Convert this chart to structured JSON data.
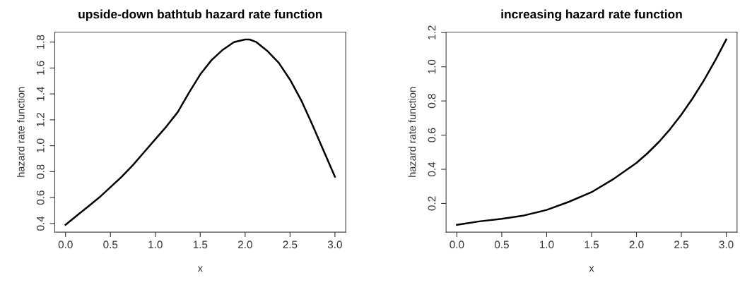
{
  "chart_data": [
    {
      "type": "line",
      "title": "upside-down bathtub hazard rate function",
      "xlabel": "x",
      "ylabel": "hazard rate function",
      "xlim": [
        -0.12,
        3.12
      ],
      "ylim": [
        0.333,
        1.877
      ],
      "xticks": [
        {
          "value": 0,
          "label": "0.0"
        },
        0.5,
        {
          "value": 1,
          "label": "1.0"
        },
        1.5,
        {
          "value": 2,
          "label": "2.0"
        },
        2.5,
        {
          "value": 3,
          "label": "3.0"
        }
      ],
      "yticks": [
        0.4,
        0.6,
        0.8,
        {
          "value": 1,
          "label": "1.0"
        },
        1.2,
        1.4,
        1.6,
        1.8
      ],
      "grid": false,
      "marker": "none",
      "line_style": "solid",
      "series": [
        {
          "color": "#000000",
          "x": [
            0,
            0.125,
            0.25,
            0.375,
            0.5,
            0.625,
            0.75,
            0.875,
            1.0,
            1.125,
            1.25,
            1.375,
            1.5,
            1.625,
            1.75,
            1.875,
            2.0,
            2.05,
            2.125,
            2.25,
            2.375,
            2.5,
            2.625,
            2.75,
            2.875,
            3.0
          ],
          "values": [
            0.39,
            0.46,
            0.53,
            0.6,
            0.68,
            0.76,
            0.85,
            0.95,
            1.05,
            1.15,
            1.26,
            1.41,
            1.55,
            1.66,
            1.74,
            1.8,
            1.82,
            1.82,
            1.8,
            1.73,
            1.64,
            1.51,
            1.35,
            1.16,
            0.96,
            0.76
          ]
        }
      ]
    },
    {
      "type": "line",
      "title": "increasing hazard rate function",
      "xlabel": "x",
      "ylabel": "hazard rate function",
      "xlim": [
        -0.12,
        3.12
      ],
      "ylim": [
        0.032,
        1.203
      ],
      "xticks": [
        {
          "value": 0,
          "label": "0.0"
        },
        0.5,
        {
          "value": 1,
          "label": "1.0"
        },
        1.5,
        {
          "value": 2,
          "label": "2.0"
        },
        2.5,
        {
          "value": 3,
          "label": "3.0"
        }
      ],
      "yticks": [
        0.2,
        0.4,
        0.6,
        0.8,
        {
          "value": 1,
          "label": "1.0"
        },
        1.2
      ],
      "grid": false,
      "marker": "none",
      "line_style": "solid",
      "series": [
        {
          "color": "#000000",
          "x": [
            0,
            0.25,
            0.5,
            0.75,
            1.0,
            1.25,
            1.5,
            1.75,
            2.0,
            2.125,
            2.25,
            2.375,
            2.5,
            2.625,
            2.75,
            2.875,
            3.0
          ],
          "values": [
            0.075,
            0.095,
            0.11,
            0.13,
            0.162,
            0.21,
            0.266,
            0.345,
            0.437,
            0.495,
            0.56,
            0.635,
            0.72,
            0.815,
            0.92,
            1.035,
            1.16
          ]
        }
      ]
    }
  ]
}
